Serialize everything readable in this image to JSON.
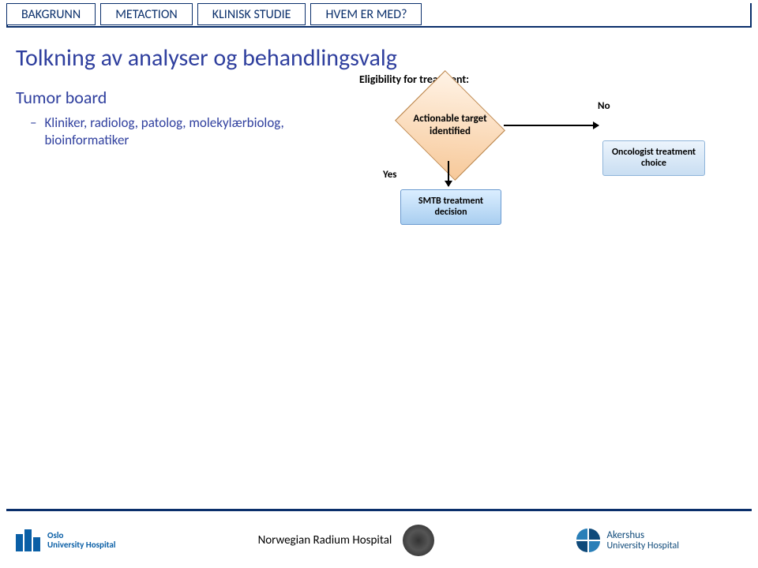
{
  "tabs": {
    "t0": "BAKGRUNN",
    "t1": "METACTION",
    "t2": "KLINISK STUDIE",
    "t3": "HVEM ER MED?"
  },
  "title": "Tolkning av analyser og behandlingsvalg",
  "section_heading": "Tumor board",
  "bullet": "Kliniker, radiolog, patolog, molekylærbiolog, bioinformatiker",
  "flow": {
    "eligibility_label": "Eligibility for treatment:",
    "diamond": "Actionable target identified",
    "yes": "Yes",
    "no": "No",
    "smtb": "SMTB treatment decision",
    "oncologist": "Oncologist treatment choice",
    "colors": {
      "diamond_grad_start": "#fff3e6",
      "diamond_grad_end": "#f7c99a",
      "diamond_border": "#c08a50",
      "box_smtb_grad_start": "#dbeeff",
      "box_smtb_grad_end": "#a9cef0",
      "box_onc_grad_start": "#ecf4fc",
      "box_onc_grad_end": "#c9def2",
      "arrow": "#000000"
    }
  },
  "footer": {
    "oslo_line1": "Oslo",
    "oslo_line2": "University Hospital",
    "center_text": "Norwegian Radium Hospital",
    "akershus_line1": "Akershus",
    "akershus_line2": "University Hospital"
  },
  "colors": {
    "border_navy": "#0a2f6b",
    "text_blue": "#2f3f9e",
    "oslo_blue": "#0a5fa6",
    "akershus_blue": "#0f4a7a"
  }
}
